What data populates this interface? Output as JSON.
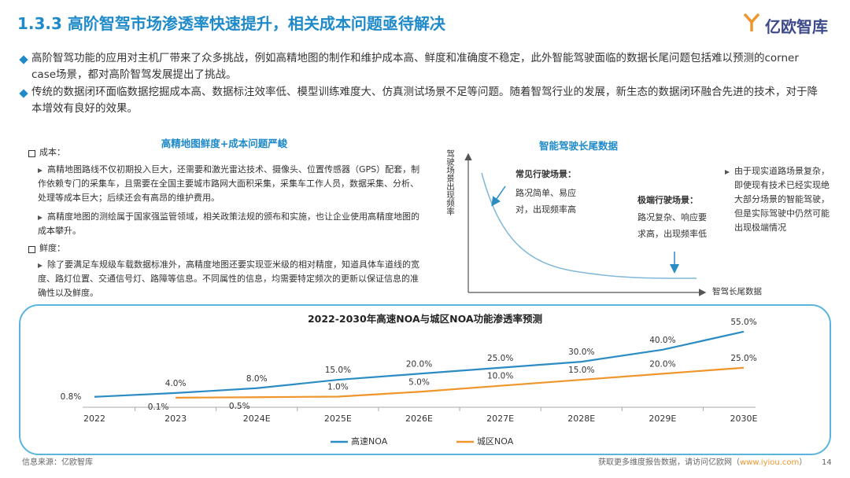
{
  "header": {
    "title": "1.3.3 高阶智驾市场渗透率快速提升，相关成本问题亟待解决",
    "logo": "亿欧智库"
  },
  "bullets": [
    "高阶智驾功能的应用对主机厂带来了众多挑战，例如高精地图的制作和维护成本高、鲜度和准确度不稳定，此外智能驾驶面临的数据长尾问题包括难以预测的corner case场景，都对高阶智驾发展提出了挑战。",
    "传统的数据闭环面临数据挖掘成本高、数据标注效率低、模型训练难度大、仿真测试场景不足等问题。随着智驾行业的发展，新生态的数据闭环融合先进的技术，对于降本增效有良好的效果。"
  ],
  "left_panel": {
    "title": "高精地图鲜度+成本问题严峻",
    "sections": [
      {
        "heading": "成本：",
        "items": [
          "高精地图路线不仅初期投入巨大，还需要和激光雷达技术、摄像头、位置传感器（GPS）配套，制作依赖专门的采集车，且需要在全国主要城市路网大面积采集，采集车工作人员，数据采集、分析、处理等成本巨大；后续还会有高昂的维护费用。",
          "高精度地图的测绘属于国家强监管领域，相关政策法规的颁布和实施，也让企业使用高精度地图的成本攀升。"
        ]
      },
      {
        "heading": "鲜度：",
        "items": [
          "除了要满足车规级车载数据标准外，高精度地图还要实现亚米级的相对精度，知道具体车道线的宽度、路灯位置、交通信号灯、路障等信息。不同属性的信息，均需要特定频次的更新以保证信息的准确性以及鲜度。"
        ]
      }
    ]
  },
  "right_panel": {
    "title": "智能驾驶长尾数据",
    "y_label": "驾驶场景出现频率",
    "x_label": "智驾长尾数据",
    "common": {
      "heading": "常见行驶场景：",
      "text": "路况简单、易应对，出现频率高"
    },
    "extreme": {
      "heading": "极端行驶场景：",
      "text": "路况复杂、响应要求高，出现频率低"
    },
    "note": "由于现实道路场景复杂，即使现有技术已经实现绝大部分场景的智能驾驶，但是实际驾驶中仍然可能出现极端情况"
  },
  "chart_data": {
    "type": "line",
    "title": "2022-2030年高速NOA与城区NOA功能渗透率预测",
    "categories": [
      "2022",
      "2023",
      "2024E",
      "2025E",
      "2026E",
      "2027E",
      "2028E",
      "2029E",
      "2030E"
    ],
    "series": [
      {
        "name": "高速NOA",
        "color": "#2b8cc4",
        "values": [
          0.8,
          4.0,
          8.0,
          15.0,
          20.0,
          25.0,
          30.0,
          40.0,
          55.0
        ],
        "value_labels": [
          "0.8%",
          "4.0%",
          "8.0%",
          "15.0%",
          "20.0%",
          "25.0%",
          "30.0%",
          "40.0%",
          "55.0%"
        ]
      },
      {
        "name": "城区NOA",
        "color": "#f0952b",
        "values": [
          null,
          0.1,
          0.5,
          1.0,
          5.0,
          10.0,
          15.0,
          20.0,
          25.0
        ],
        "value_labels": [
          null,
          "0.1%",
          "0.5%",
          "1.0%",
          "5.0%",
          "10.0%",
          "15.0%",
          "20.0%",
          "25.0%"
        ]
      }
    ]
  },
  "footer": {
    "source": "信息来源：亿欧智库",
    "cta": "获取更多维度报告数据，请访问亿欧网（",
    "url": "www.iyiou.com",
    "cta_end": "）",
    "page": "14"
  }
}
